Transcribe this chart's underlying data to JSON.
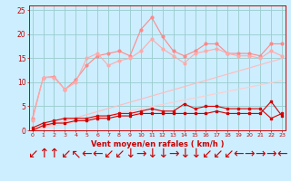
{
  "x": [
    0,
    1,
    2,
    3,
    4,
    5,
    6,
    7,
    8,
    9,
    10,
    11,
    12,
    13,
    14,
    15,
    16,
    17,
    18,
    19,
    20,
    21,
    22,
    23
  ],
  "line1": [
    2.5,
    11.0,
    11.2,
    8.5,
    10.5,
    13.5,
    15.5,
    16.0,
    16.5,
    15.5,
    21.0,
    23.5,
    19.5,
    16.5,
    15.5,
    16.5,
    18.0,
    18.0,
    16.0,
    16.0,
    16.0,
    15.5,
    18.0,
    18.0
  ],
  "line2": [
    2.0,
    11.0,
    11.0,
    8.5,
    10.0,
    15.0,
    16.0,
    13.5,
    14.5,
    15.0,
    16.5,
    19.0,
    17.0,
    15.5,
    14.0,
    16.0,
    16.5,
    17.0,
    16.0,
    15.5,
    15.5,
    15.0,
    16.5,
    15.5
  ],
  "line3": [
    0.5,
    1.5,
    2.0,
    2.5,
    2.5,
    2.5,
    3.0,
    3.0,
    3.5,
    3.5,
    4.0,
    4.5,
    4.0,
    4.0,
    5.5,
    4.5,
    5.0,
    5.0,
    4.5,
    4.5,
    4.5,
    4.5,
    2.5,
    3.5
  ],
  "line4": [
    0.0,
    1.0,
    1.5,
    1.5,
    2.0,
    2.0,
    2.5,
    2.5,
    3.0,
    3.0,
    3.5,
    3.5,
    3.5,
    3.5,
    3.5,
    3.5,
    3.5,
    4.0,
    3.5,
    3.5,
    3.5,
    3.5,
    6.0,
    3.0
  ],
  "trend1": [
    0.0,
    0.65,
    1.3,
    1.95,
    2.6,
    3.25,
    3.9,
    4.55,
    5.2,
    5.85,
    6.5,
    7.15,
    7.8,
    8.45,
    9.1,
    9.75,
    10.4,
    11.05,
    11.7,
    12.35,
    13.0,
    13.65,
    14.3,
    14.95
  ],
  "trend2": [
    0.0,
    0.45,
    0.9,
    1.35,
    1.8,
    2.25,
    2.7,
    3.15,
    3.6,
    4.05,
    4.5,
    4.95,
    5.4,
    5.85,
    6.3,
    6.75,
    7.2,
    7.65,
    8.1,
    8.55,
    9.0,
    9.45,
    9.9,
    10.35
  ],
  "bg_color": "#cceeff",
  "grid_color": "#99cccc",
  "line1_color": "#ff8888",
  "line2_color": "#ffaaaa",
  "line3_color": "#dd0000",
  "line4_color": "#cc0000",
  "trend1_color": "#ffbbbb",
  "trend2_color": "#ffcccc",
  "xlabel": "Vent moyen/en rafales ( km/h )",
  "ylim": [
    0,
    26
  ],
  "xlim": [
    -0.3,
    23.3
  ],
  "yticks": [
    0,
    5,
    10,
    15,
    20,
    25
  ],
  "xticks": [
    0,
    1,
    2,
    3,
    4,
    5,
    6,
    7,
    8,
    9,
    10,
    11,
    12,
    13,
    14,
    15,
    16,
    17,
    18,
    19,
    20,
    21,
    22,
    23
  ],
  "arrow_symbols": [
    "↙",
    "↑",
    "↑",
    "↙",
    "↖",
    "←",
    "←",
    "↙",
    "↙",
    "↓",
    "→",
    "↓",
    "↓",
    "→",
    "↓",
    "↓",
    "↙",
    "↙",
    "↙",
    "←",
    "→",
    "→",
    "→",
    "←"
  ]
}
